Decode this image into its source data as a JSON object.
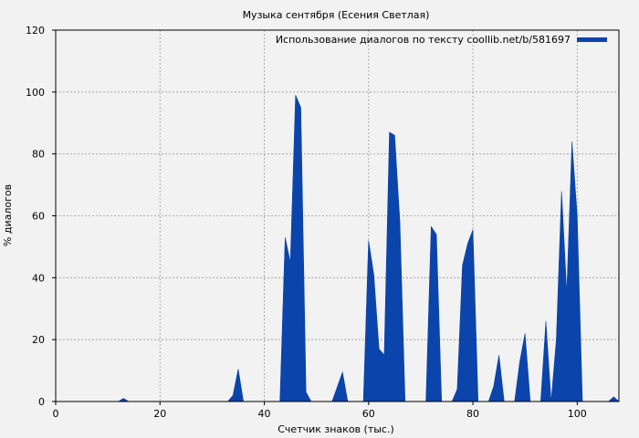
{
  "chart_data": {
    "type": "area",
    "title": "Музыка сентября (Есения Светлая)",
    "xlabel": "Счетчик знаков (тыс.)",
    "ylabel": "% диалогов",
    "xlim": [
      0,
      108
    ],
    "ylim": [
      0,
      120
    ],
    "xticks": [
      0,
      20,
      40,
      60,
      80,
      100
    ],
    "yticks": [
      0,
      20,
      40,
      60,
      80,
      100,
      120
    ],
    "grid": true,
    "legend_position": "top-right",
    "fill_color": "#0b44aa",
    "series": [
      {
        "name": "Использование диалогов по тексту coollib.net/b/581697",
        "points": [
          [
            0,
            0
          ],
          [
            12,
            0
          ],
          [
            13,
            1
          ],
          [
            14,
            0
          ],
          [
            33,
            0
          ],
          [
            34,
            2
          ],
          [
            35,
            10.5
          ],
          [
            36,
            0
          ],
          [
            43,
            0
          ],
          [
            44,
            53
          ],
          [
            45,
            45
          ],
          [
            46,
            99
          ],
          [
            47,
            95
          ],
          [
            48,
            3
          ],
          [
            49,
            0
          ],
          [
            53,
            0
          ],
          [
            55,
            9.5
          ],
          [
            56,
            0
          ],
          [
            59,
            0
          ],
          [
            60,
            52
          ],
          [
            61,
            41
          ],
          [
            62,
            17
          ],
          [
            63,
            15
          ],
          [
            64,
            87
          ],
          [
            65,
            86
          ],
          [
            66,
            58
          ],
          [
            67,
            0
          ],
          [
            71,
            0
          ],
          [
            72,
            56.5
          ],
          [
            73,
            54
          ],
          [
            74,
            0
          ],
          [
            76,
            0
          ],
          [
            77,
            4
          ],
          [
            78,
            44
          ],
          [
            79,
            51
          ],
          [
            80,
            55.5
          ],
          [
            81,
            0
          ],
          [
            83,
            0
          ],
          [
            84,
            5
          ],
          [
            85,
            15
          ],
          [
            86,
            0
          ],
          [
            88,
            0
          ],
          [
            89,
            13
          ],
          [
            90,
            22
          ],
          [
            91,
            0
          ],
          [
            93,
            0
          ],
          [
            94,
            26
          ],
          [
            95,
            0
          ],
          [
            96,
            20
          ],
          [
            97,
            68
          ],
          [
            98,
            35
          ],
          [
            99,
            84
          ],
          [
            100,
            60
          ],
          [
            101,
            0
          ],
          [
            106,
            0
          ],
          [
            107,
            1.5
          ],
          [
            108,
            0
          ]
        ]
      }
    ]
  }
}
